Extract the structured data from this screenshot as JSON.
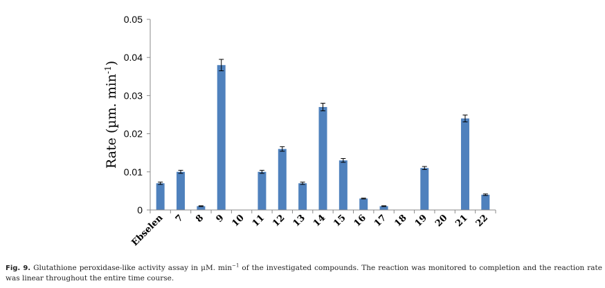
{
  "chart_data": {
    "type": "bar",
    "ylabel_main": "Rate (µm. min",
    "ylabel_sup": "-1",
    "ylabel_close": ")",
    "ylim": [
      0,
      0.05
    ],
    "yticks": [
      "0",
      "0.01",
      "0.02",
      "0.03",
      "0.04",
      "0.05"
    ],
    "ytick_values": [
      0,
      0.01,
      0.02,
      0.03,
      0.04,
      0.05
    ],
    "categories": [
      "Ebselen",
      "7",
      "8",
      "9",
      "10",
      "11",
      "12",
      "13",
      "14",
      "15",
      "16",
      "17",
      "18",
      "19",
      "20",
      "21",
      "22"
    ],
    "values": [
      0.007,
      0.01,
      0.001,
      0.038,
      0,
      0.01,
      0.016,
      0.007,
      0.027,
      0.013,
      0.003,
      0.001,
      0,
      0.011,
      0,
      0.024,
      0.004
    ],
    "errors": [
      0.0003,
      0.0004,
      0.0001,
      0.0015,
      0,
      0.0004,
      0.0006,
      0.0003,
      0.001,
      0.0005,
      0.0001,
      0.0001,
      0,
      0.0004,
      0,
      0.0009,
      0.0002
    ],
    "bar_color": "#4f81bd",
    "grid": false
  },
  "caption": {
    "fig_label": "Fig. 9.",
    "text_before": "Glutathione peroxidase-like activity assay in μM. min",
    "text_sup": "−1",
    "text_after": " of the investigated compounds. The reaction was monitored to completion and the reaction rate was linear throughout the entire time course."
  }
}
